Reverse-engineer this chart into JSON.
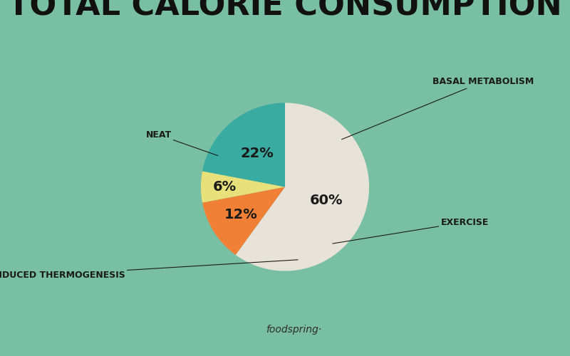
{
  "title": "TOTAL CALORIE CONSUMPTION",
  "background_color": "#79bfa4",
  "slices": [
    60,
    12,
    6,
    22
  ],
  "labels": [
    "BASAL METABOLISM",
    "EXERCISE",
    "DIET-INDUCED THERMOGENESIS",
    "NEAT"
  ],
  "pct_labels": [
    "60%",
    "12%",
    "6%",
    "22%"
  ],
  "colors": [
    "#e8e3d8",
    "#f08035",
    "#e8e07a",
    "#3aaba0"
  ],
  "footer": "foodspring·",
  "startangle": 90,
  "title_fontsize": 32,
  "label_fontsize": 9,
  "pct_fontsize": 14
}
